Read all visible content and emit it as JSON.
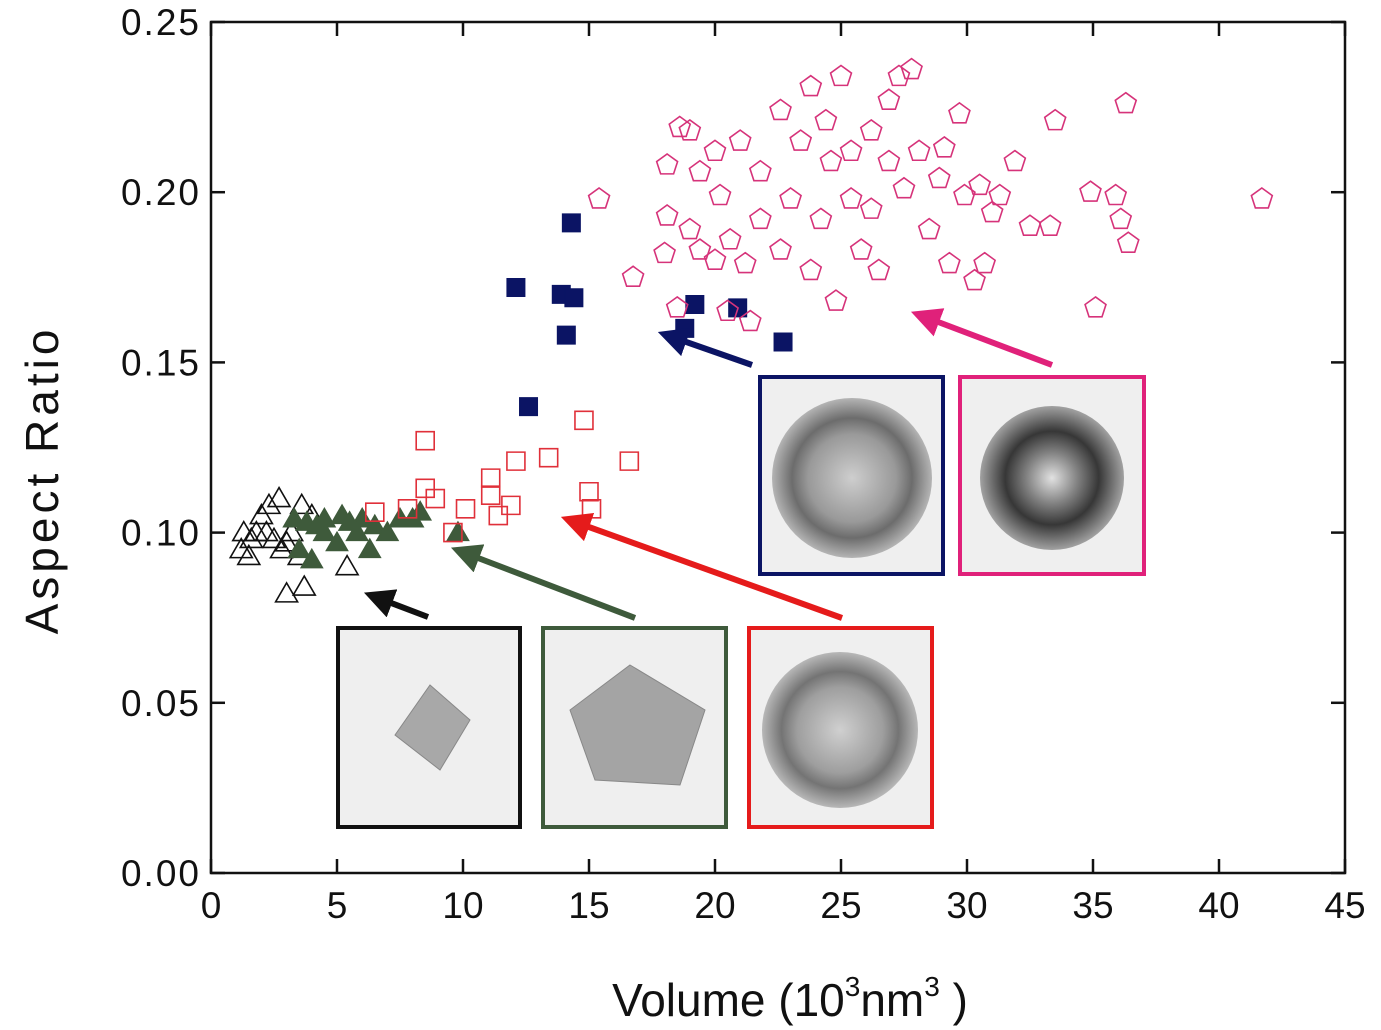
{
  "chart_data": {
    "type": "scatter",
    "x_label": [
      "Volume (10",
      "3",
      "nm",
      "3",
      " )"
    ],
    "y_label": "Aspect Ratio",
    "xlim": [
      0,
      45
    ],
    "ylim": [
      0,
      0.25
    ],
    "xticks": [
      0,
      5,
      10,
      15,
      20,
      25,
      30,
      35,
      40,
      45
    ],
    "yticks": [
      {
        "value": 0,
        "label": "0.00"
      },
      0.05,
      {
        "value": 0.1,
        "label": "0.10"
      },
      0.15,
      {
        "value": 0.2,
        "label": "0.20"
      },
      0.25
    ],
    "series": [
      {
        "marker": "triangle",
        "filled": false,
        "color": "#111111",
        "x": [
          1.2,
          1.5,
          1.8,
          2.0,
          2.3,
          2.7,
          1.3,
          3.0,
          3.2,
          2.5,
          3.5,
          3.6,
          2.2,
          1.6,
          3.0,
          3.7,
          5.4,
          2.8,
          4.0
        ],
        "y": [
          0.095,
          0.093,
          0.1,
          0.105,
          0.108,
          0.11,
          0.1,
          0.097,
          0.1,
          0.098,
          0.093,
          0.108,
          0.1,
          0.098,
          0.082,
          0.084,
          0.09,
          0.095,
          0.105
        ]
      },
      {
        "marker": "triangle",
        "filled": true,
        "color": "#3e5a3b",
        "x": [
          3.3,
          3.8,
          4.2,
          4.5,
          5.2,
          5.5,
          6.0,
          6.5,
          7.0,
          7.5,
          8.0,
          8.3,
          3.5,
          4.0,
          5.0,
          6.3,
          4.5,
          9.8,
          5.8
        ],
        "y": [
          0.104,
          0.103,
          0.102,
          0.104,
          0.105,
          0.103,
          0.104,
          0.102,
          0.1,
          0.104,
          0.104,
          0.106,
          0.095,
          0.092,
          0.097,
          0.095,
          0.1,
          0.1,
          0.1
        ]
      },
      {
        "marker": "square",
        "filled": false,
        "color": "#e0303a",
        "x": [
          6.5,
          7.8,
          8.5,
          8.5,
          8.9,
          9.6,
          10.1,
          11.1,
          11.1,
          11.4,
          11.9,
          12.1,
          13.4,
          14.8,
          15.0,
          15.1,
          16.6
        ],
        "y": [
          0.106,
          0.107,
          0.127,
          0.113,
          0.11,
          0.1,
          0.107,
          0.111,
          0.116,
          0.105,
          0.108,
          0.121,
          0.122,
          0.133,
          0.112,
          0.107,
          0.121
        ]
      },
      {
        "marker": "square",
        "filled": true,
        "color": "#0b1464",
        "x": [
          12.1,
          12.6,
          13.9,
          14.4,
          14.1,
          14.3,
          19.2,
          20.9,
          22.7,
          18.8
        ],
        "y": [
          0.172,
          0.137,
          0.17,
          0.169,
          0.158,
          0.191,
          0.167,
          0.166,
          0.156,
          0.16
        ]
      },
      {
        "marker": "pentagon",
        "filled": false,
        "color": "#d6337a",
        "x": [
          15.4,
          16.75,
          18.5,
          18.1,
          18.6,
          19.0,
          18.1,
          19.0,
          18.0,
          19.4,
          20.0,
          20.2,
          20.6,
          21.2,
          20.0,
          21.0,
          21.8,
          22.6,
          23.0,
          23.4,
          23.8,
          24.4,
          24.6,
          24.8,
          25.0,
          25.4,
          25.8,
          26.2,
          26.5,
          26.9,
          27.3,
          27.8,
          27.5,
          28.1,
          28.5,
          29.1,
          29.3,
          29.7,
          29.9,
          30.7,
          31.0,
          31.3,
          31.9,
          32.5,
          33.3,
          33.5,
          34.9,
          35.1,
          35.9,
          36.1,
          36.4,
          36.3,
          41.7,
          21.8,
          24.2,
          26.2,
          22.6,
          23.8,
          25.4,
          26.9,
          28.9,
          19.4,
          20.5,
          21.4,
          30.3,
          30.5
        ],
        "y": [
          0.198,
          0.175,
          0.166,
          0.208,
          0.219,
          0.218,
          0.193,
          0.189,
          0.182,
          0.206,
          0.212,
          0.199,
          0.186,
          0.179,
          0.18,
          0.215,
          0.206,
          0.224,
          0.198,
          0.215,
          0.231,
          0.221,
          0.209,
          0.168,
          0.234,
          0.198,
          0.183,
          0.218,
          0.177,
          0.227,
          0.234,
          0.236,
          0.201,
          0.212,
          0.189,
          0.213,
          0.179,
          0.223,
          0.199,
          0.179,
          0.194,
          0.199,
          0.209,
          0.19,
          0.19,
          0.221,
          0.2,
          0.166,
          0.199,
          0.192,
          0.185,
          0.226,
          0.198,
          0.192,
          0.192,
          0.195,
          0.183,
          0.177,
          0.212,
          0.209,
          0.204,
          0.183,
          0.165,
          0.162,
          0.174,
          0.202
        ]
      }
    ]
  }
}
